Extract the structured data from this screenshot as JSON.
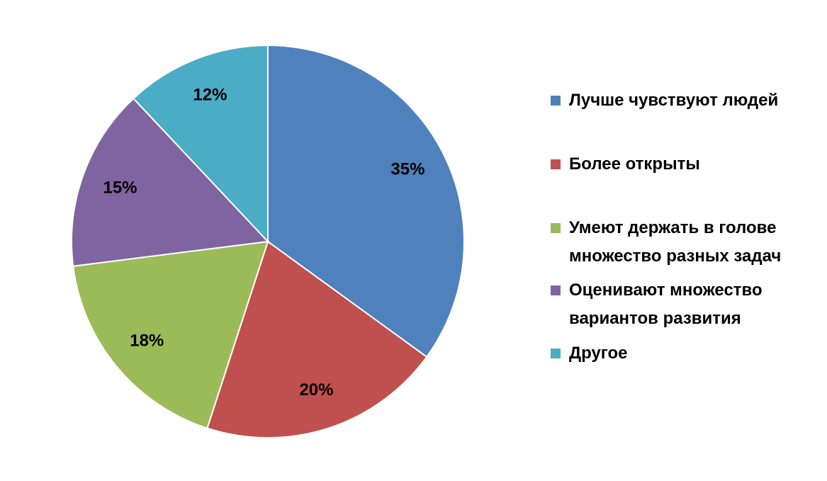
{
  "chart_data": {
    "type": "pie",
    "categories": [
      "Лучше чувствуют людей",
      "Более открыты",
      "Умеют держать в голове множество разных задач",
      "Оценивают множество вариантов развития",
      "Другое"
    ],
    "values": [
      35,
      20,
      18,
      15,
      12
    ],
    "value_labels": [
      "35%",
      "20%",
      "18%",
      "15%",
      "12%"
    ],
    "colors": [
      "#4f81bd",
      "#c0504d",
      "#9bbb59",
      "#8064a2",
      "#4bacc6"
    ],
    "legend": "right"
  }
}
